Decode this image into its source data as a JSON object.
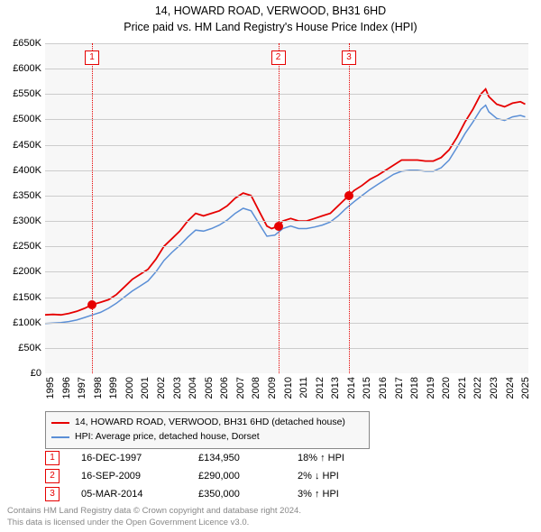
{
  "title_line1": "14, HOWARD ROAD, VERWOOD, BH31 6HD",
  "title_line2": "Price paid vs. HM Land Registry's House Price Index (HPI)",
  "chart": {
    "type": "line",
    "background_color": "#f7f7f7",
    "grid_color": "#cccccc",
    "x": {
      "min": 1995.0,
      "max": 2025.5,
      "ticks": [
        1995,
        1996,
        1997,
        1998,
        1999,
        2000,
        2001,
        2002,
        2003,
        2004,
        2005,
        2006,
        2007,
        2008,
        2009,
        2010,
        2011,
        2012,
        2013,
        2014,
        2015,
        2016,
        2017,
        2018,
        2019,
        2020,
        2021,
        2022,
        2023,
        2024,
        2025
      ],
      "tick_labels": [
        "1995",
        "1996",
        "1997",
        "1998",
        "1999",
        "2000",
        "2001",
        "2002",
        "2003",
        "2004",
        "2005",
        "2006",
        "2007",
        "2008",
        "2009",
        "2010",
        "2011",
        "2012",
        "2013",
        "2014",
        "2015",
        "2016",
        "2017",
        "2018",
        "2019",
        "2020",
        "2021",
        "2022",
        "2023",
        "2024",
        "2025"
      ],
      "label_fontsize": 11
    },
    "y": {
      "min": 0,
      "max": 650000,
      "ticks": [
        0,
        50000,
        100000,
        150000,
        200000,
        250000,
        300000,
        350000,
        400000,
        450000,
        500000,
        550000,
        600000,
        650000
      ],
      "tick_labels": [
        "£0",
        "£50K",
        "£100K",
        "£150K",
        "£200K",
        "£250K",
        "£300K",
        "£350K",
        "£400K",
        "£450K",
        "£500K",
        "£550K",
        "£600K",
        "£650K"
      ],
      "label_fontsize": 11
    },
    "series": [
      {
        "name": "14, HOWARD ROAD, VERWOOD, BH31 6HD (detached house)",
        "color": "#e60000",
        "line_width": 1.8,
        "points": [
          [
            1995.0,
            115000
          ],
          [
            1995.5,
            116000
          ],
          [
            1996.0,
            115000
          ],
          [
            1996.5,
            118000
          ],
          [
            1997.0,
            122000
          ],
          [
            1997.5,
            128000
          ],
          [
            1997.96,
            134950
          ],
          [
            1998.5,
            140000
          ],
          [
            1999.0,
            145000
          ],
          [
            1999.5,
            155000
          ],
          [
            2000.0,
            170000
          ],
          [
            2000.5,
            185000
          ],
          [
            2001.0,
            195000
          ],
          [
            2001.5,
            205000
          ],
          [
            2002.0,
            225000
          ],
          [
            2002.5,
            250000
          ],
          [
            2003.0,
            265000
          ],
          [
            2003.5,
            280000
          ],
          [
            2004.0,
            300000
          ],
          [
            2004.5,
            315000
          ],
          [
            2005.0,
            310000
          ],
          [
            2005.5,
            315000
          ],
          [
            2006.0,
            320000
          ],
          [
            2006.5,
            330000
          ],
          [
            2007.0,
            345000
          ],
          [
            2007.5,
            355000
          ],
          [
            2008.0,
            350000
          ],
          [
            2008.5,
            320000
          ],
          [
            2009.0,
            290000
          ],
          [
            2009.3,
            285000
          ],
          [
            2009.71,
            290000
          ],
          [
            2010.0,
            300000
          ],
          [
            2010.5,
            305000
          ],
          [
            2011.0,
            300000
          ],
          [
            2011.5,
            300000
          ],
          [
            2012.0,
            305000
          ],
          [
            2012.5,
            310000
          ],
          [
            2013.0,
            315000
          ],
          [
            2013.5,
            330000
          ],
          [
            2014.0,
            345000
          ],
          [
            2014.18,
            350000
          ],
          [
            2014.5,
            360000
          ],
          [
            2015.0,
            370000
          ],
          [
            2015.5,
            382000
          ],
          [
            2016.0,
            390000
          ],
          [
            2016.5,
            400000
          ],
          [
            2017.0,
            410000
          ],
          [
            2017.5,
            420000
          ],
          [
            2018.0,
            420000
          ],
          [
            2018.5,
            420000
          ],
          [
            2019.0,
            418000
          ],
          [
            2019.5,
            418000
          ],
          [
            2020.0,
            425000
          ],
          [
            2020.5,
            440000
          ],
          [
            2021.0,
            465000
          ],
          [
            2021.5,
            495000
          ],
          [
            2022.0,
            520000
          ],
          [
            2022.5,
            550000
          ],
          [
            2022.8,
            560000
          ],
          [
            2023.0,
            545000
          ],
          [
            2023.5,
            530000
          ],
          [
            2024.0,
            525000
          ],
          [
            2024.5,
            532000
          ],
          [
            2025.0,
            535000
          ],
          [
            2025.3,
            530000
          ]
        ]
      },
      {
        "name": "HPI: Average price, detached house, Dorset",
        "color": "#5b8fd6",
        "line_width": 1.5,
        "points": [
          [
            1995.0,
            98000
          ],
          [
            1995.5,
            99000
          ],
          [
            1996.0,
            100000
          ],
          [
            1996.5,
            102000
          ],
          [
            1997.0,
            105000
          ],
          [
            1997.5,
            110000
          ],
          [
            1998.0,
            115000
          ],
          [
            1998.5,
            120000
          ],
          [
            1999.0,
            128000
          ],
          [
            1999.5,
            138000
          ],
          [
            2000.0,
            150000
          ],
          [
            2000.5,
            162000
          ],
          [
            2001.0,
            172000
          ],
          [
            2001.5,
            182000
          ],
          [
            2002.0,
            200000
          ],
          [
            2002.5,
            222000
          ],
          [
            2003.0,
            238000
          ],
          [
            2003.5,
            252000
          ],
          [
            2004.0,
            268000
          ],
          [
            2004.5,
            282000
          ],
          [
            2005.0,
            280000
          ],
          [
            2005.5,
            285000
          ],
          [
            2006.0,
            292000
          ],
          [
            2006.5,
            302000
          ],
          [
            2007.0,
            315000
          ],
          [
            2007.5,
            325000
          ],
          [
            2008.0,
            320000
          ],
          [
            2008.5,
            295000
          ],
          [
            2009.0,
            270000
          ],
          [
            2009.5,
            272000
          ],
          [
            2010.0,
            285000
          ],
          [
            2010.5,
            290000
          ],
          [
            2011.0,
            285000
          ],
          [
            2011.5,
            285000
          ],
          [
            2012.0,
            288000
          ],
          [
            2012.5,
            292000
          ],
          [
            2013.0,
            298000
          ],
          [
            2013.5,
            310000
          ],
          [
            2014.0,
            325000
          ],
          [
            2014.5,
            338000
          ],
          [
            2015.0,
            350000
          ],
          [
            2015.5,
            362000
          ],
          [
            2016.0,
            372000
          ],
          [
            2016.5,
            382000
          ],
          [
            2017.0,
            392000
          ],
          [
            2017.5,
            398000
          ],
          [
            2018.0,
            400000
          ],
          [
            2018.5,
            400000
          ],
          [
            2019.0,
            398000
          ],
          [
            2019.5,
            398000
          ],
          [
            2020.0,
            405000
          ],
          [
            2020.5,
            420000
          ],
          [
            2021.0,
            445000
          ],
          [
            2021.5,
            472000
          ],
          [
            2022.0,
            495000
          ],
          [
            2022.5,
            520000
          ],
          [
            2022.8,
            528000
          ],
          [
            2023.0,
            515000
          ],
          [
            2023.5,
            502000
          ],
          [
            2024.0,
            498000
          ],
          [
            2024.5,
            505000
          ],
          [
            2025.0,
            508000
          ],
          [
            2025.3,
            505000
          ]
        ]
      }
    ],
    "reference_lines": [
      {
        "x": 1997.96,
        "label": "1"
      },
      {
        "x": 2009.71,
        "label": "2"
      },
      {
        "x": 2014.18,
        "label": "3"
      }
    ],
    "sale_points": [
      {
        "x": 1997.96,
        "y": 134950
      },
      {
        "x": 2009.71,
        "y": 290000
      },
      {
        "x": 2014.18,
        "y": 350000
      }
    ],
    "refline_color": "#e60000",
    "marker_color": "#e60000"
  },
  "legend": {
    "border_color": "#888888",
    "bg_color": "#f7f7f7",
    "items": [
      {
        "color": "#e60000",
        "label": "14, HOWARD ROAD, VERWOOD, BH31 6HD (detached house)"
      },
      {
        "color": "#5b8fd6",
        "label": "HPI: Average price, detached house, Dorset"
      }
    ]
  },
  "sales": [
    {
      "marker": "1",
      "date": "16-DEC-1997",
      "price": "£134,950",
      "delta": "18% ↑ HPI"
    },
    {
      "marker": "2",
      "date": "16-SEP-2009",
      "price": "£290,000",
      "delta": "2% ↓ HPI"
    },
    {
      "marker": "3",
      "date": "05-MAR-2014",
      "price": "£350,000",
      "delta": "3% ↑ HPI"
    }
  ],
  "footer_line1": "Contains HM Land Registry data © Crown copyright and database right 2024.",
  "footer_line2": "This data is licensed under the Open Government Licence v3.0."
}
